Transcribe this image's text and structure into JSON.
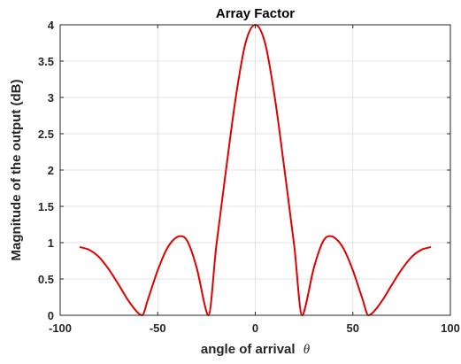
{
  "chart_data": {
    "type": "line",
    "title": "Array Factor",
    "xlabel": "angle of arrival",
    "xlabel_symbol": "θ",
    "ylabel": "Magnitude of the output (dB)",
    "xlim": [
      -100,
      100
    ],
    "ylim": [
      0,
      4
    ],
    "xticks": [
      -100,
      -50,
      0,
      50,
      100
    ],
    "xtick_labels": [
      "-100",
      "-50",
      "0",
      "50",
      "100"
    ],
    "yticks": [
      0,
      0.5,
      1,
      1.5,
      2,
      2.5,
      3,
      3.5,
      4
    ],
    "ytick_labels": [
      "0",
      "0.5",
      "1",
      "1.5",
      "2",
      "2.5",
      "3",
      "3.5",
      "4"
    ],
    "grid": true,
    "line_color": "#e00000",
    "series": [
      {
        "x": [
          -90,
          -85,
          -80,
          -75,
          -70,
          -65,
          -60,
          -58,
          -55,
          -50,
          -45,
          -40,
          -38,
          -35,
          -30,
          -25,
          -24,
          -20,
          -15,
          -10,
          -5,
          0,
          5,
          10,
          15,
          20,
          24,
          25,
          30,
          35,
          38,
          40,
          45,
          50,
          55,
          58,
          60,
          65,
          70,
          75,
          80,
          85,
          90
        ],
        "y": [
          0.94,
          0.9,
          0.8,
          0.63,
          0.42,
          0.2,
          0.03,
          0.0,
          0.22,
          0.62,
          0.93,
          1.08,
          1.09,
          1.03,
          0.65,
          0.05,
          0.0,
          0.95,
          2.0,
          3.0,
          3.75,
          4.0,
          3.75,
          3.0,
          2.0,
          0.95,
          0.0,
          0.05,
          0.65,
          1.03,
          1.09,
          1.08,
          0.93,
          0.62,
          0.22,
          0.0,
          0.03,
          0.2,
          0.42,
          0.63,
          0.8,
          0.9,
          0.94
        ]
      }
    ]
  }
}
